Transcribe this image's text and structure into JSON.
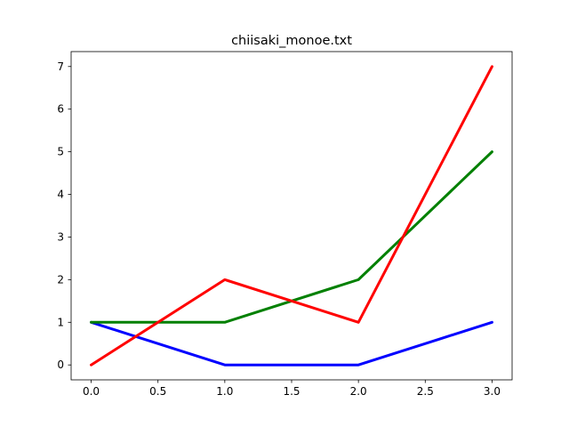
{
  "chart_data": {
    "type": "line",
    "title": "chiisaki_monoe.txt",
    "xlabel": "",
    "ylabel": "",
    "x": [
      0,
      1,
      2,
      3
    ],
    "xlim": [
      -0.15,
      3.15
    ],
    "ylim": [
      -0.35,
      7.35
    ],
    "xticks": [
      0,
      0.5,
      1,
      1.5,
      2,
      2.5,
      3
    ],
    "xtick_labels": [
      "0.0",
      "0.5",
      "1.0",
      "1.5",
      "2.0",
      "2.5",
      "3.0"
    ],
    "yticks": [
      0,
      1,
      2,
      3,
      4,
      5,
      6,
      7
    ],
    "ytick_labels": [
      "0",
      "1",
      "2",
      "3",
      "4",
      "5",
      "6",
      "7"
    ],
    "grid": false,
    "series": [
      {
        "values": [
          1,
          0,
          0,
          1
        ],
        "color": "#0000ff"
      },
      {
        "values": [
          1,
          1,
          2,
          5
        ],
        "color": "#008000"
      },
      {
        "values": [
          0,
          2,
          1,
          7
        ],
        "color": "#ff0000"
      }
    ]
  }
}
